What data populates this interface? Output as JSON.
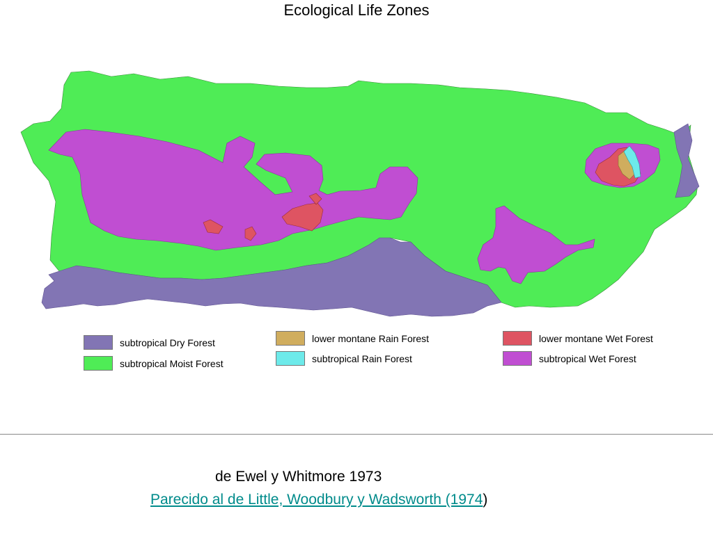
{
  "title": "Ecological Life Zones",
  "legend": {
    "dry": {
      "label": "subtropical Dry Forest",
      "color": "#8275b4"
    },
    "moist": {
      "label": "subtropical Moist Forest",
      "color": "#4fec56"
    },
    "lm_rain": {
      "label": "lower montane Rain Forest",
      "color": "#d0ad5e"
    },
    "rain": {
      "label": "subtropical Rain Forest",
      "color": "#6deaea"
    },
    "lm_wet": {
      "label": "lower montane Wet Forest",
      "color": "#de5462"
    },
    "wet": {
      "label": "subtropical Wet Forest",
      "color": "#c04ed2"
    }
  },
  "credit": "de Ewel y Whitmore 1973",
  "source": {
    "link_text": "Parecido al de Little, Woodbury y Wadsworth (1974",
    "suffix": ")"
  }
}
